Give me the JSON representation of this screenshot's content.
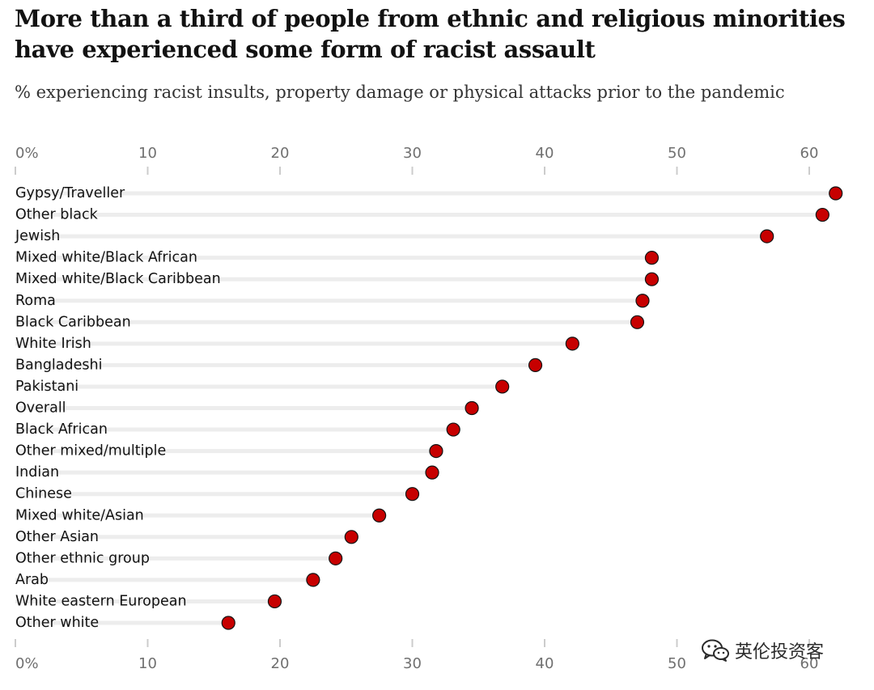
{
  "title": "More than a third of people from ethnic and religious minorities have experienced some form of racist assault",
  "subtitle": "% experiencing racist insults, property damage or physical attacks prior to the pandemic",
  "watermark": {
    "text": "英伦投资客",
    "icon": "wechat-icon"
  },
  "colors": {
    "dot": "#c70000",
    "dot_stroke": "#121212",
    "track": "#ededed",
    "axis_tick": "#cccccc"
  },
  "chart_data": {
    "type": "scatter",
    "orientation": "horizontal-dot",
    "xlim": [
      0,
      62
    ],
    "x_ticks": [
      0,
      10,
      20,
      30,
      40,
      50,
      60
    ],
    "x_tick_labels": [
      "0%",
      "10",
      "20",
      "30",
      "40",
      "50",
      "60"
    ],
    "axis_labels_positions": [
      "top",
      "bottom"
    ],
    "grid": false,
    "categories": [
      "Gypsy/Traveller",
      "Other black",
      "Jewish",
      "Mixed white/Black African",
      "Mixed white/Black Caribbean",
      "Roma",
      "Black Caribbean",
      "White Irish",
      "Bangladeshi",
      "Pakistani",
      "Overall",
      "Black African",
      "Other mixed/multiple",
      "Indian",
      "Chinese",
      "Mixed white/Asian",
      "Other Asian",
      "Other ethnic group",
      "Arab",
      "White eastern European",
      "Other white"
    ],
    "values": [
      62.0,
      61.0,
      56.8,
      48.1,
      48.1,
      47.4,
      47.0,
      42.1,
      39.3,
      36.8,
      34.5,
      33.1,
      31.8,
      31.5,
      30.0,
      27.5,
      25.4,
      24.2,
      22.5,
      19.6,
      16.1
    ]
  }
}
